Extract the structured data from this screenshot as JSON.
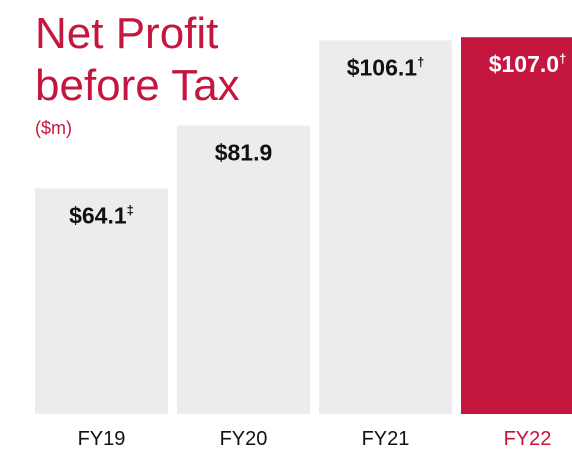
{
  "chart_data": {
    "type": "bar",
    "title": "Net Profit before Tax",
    "subtitle": "($m)",
    "categories": [
      "FY19",
      "FY20",
      "FY21",
      "FY22"
    ],
    "values": [
      64.1,
      81.9,
      106.1,
      107.0
    ],
    "value_labels": [
      "$64.1",
      "$81.9",
      "$106.1",
      "$107.0"
    ],
    "value_notes": [
      "‡",
      null,
      "†",
      "†"
    ],
    "colors": [
      "#ececec",
      "#ececec",
      "#ececec",
      "#c4163f"
    ],
    "text_colors": [
      "#111111",
      "#111111",
      "#111111",
      "#ffffff"
    ],
    "category_colors": [
      "#111111",
      "#111111",
      "#111111",
      "#c4163f"
    ],
    "title_color": "#c4163f",
    "ylim": [
      0,
      117
    ]
  }
}
